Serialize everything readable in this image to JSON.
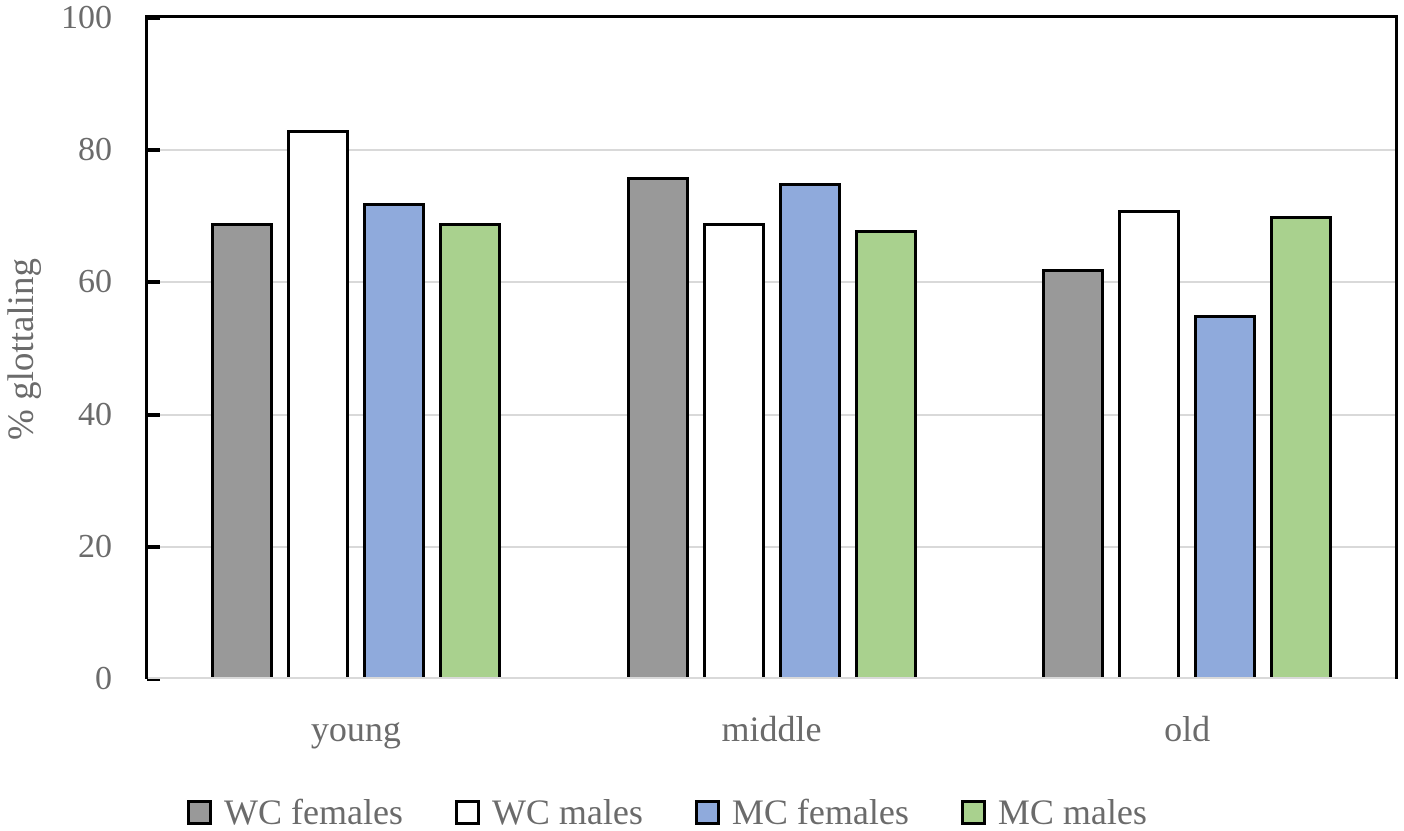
{
  "chart_data": {
    "type": "bar",
    "ylabel": "% glottaling",
    "xlabel": "",
    "categories": [
      "young",
      "middle",
      "old"
    ],
    "series": [
      {
        "name": "WC females",
        "color": "#999999",
        "values": [
          69,
          76,
          62
        ]
      },
      {
        "name": "WC males",
        "color": "#ffffff",
        "values": [
          83,
          69,
          71
        ]
      },
      {
        "name": "MC females",
        "color": "#8faadc",
        "values": [
          72,
          75,
          55
        ]
      },
      {
        "name": "MC males",
        "color": "#a9d18e",
        "values": [
          69,
          68,
          70
        ]
      }
    ],
    "ylim": [
      0,
      100
    ],
    "yticks": [
      0,
      20,
      40,
      60,
      80,
      100
    ],
    "grid": true,
    "legend_position": "bottom"
  },
  "colors": {
    "bar_border": "#000000",
    "gridline": "#d9d9d9",
    "baseline": "#d9d9d9",
    "plot_border": "#000000",
    "text": "#6b6b6b"
  }
}
